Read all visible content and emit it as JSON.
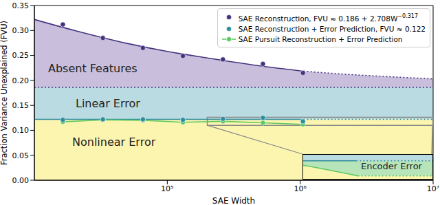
{
  "chart_data": [
    {
      "type": "scatter",
      "x_label": "SAE Width",
      "y_label": "Fraction Variance Unexplained (FVU)",
      "log": "x",
      "legend": "upper right",
      "xlim": [
        10000,
        10000000
      ],
      "ylim": [
        0,
        0.35
      ],
      "xticks": [
        {
          "value": 100000,
          "label": "10⁵"
        },
        {
          "value": 1000000,
          "label": "10⁶"
        },
        {
          "value": 10000000,
          "label": "10⁷"
        }
      ],
      "yticks": [
        {
          "value": 0,
          "label": "0.00"
        },
        {
          "value": 0.05,
          "label": "0.05"
        },
        {
          "value": 0.1,
          "label": "0.10"
        },
        {
          "value": 0.15,
          "label": "0.15"
        },
        {
          "value": 0.2,
          "label": "0.20"
        },
        {
          "value": 0.25,
          "label": "0.25"
        },
        {
          "value": 0.3,
          "label": "0.30"
        },
        {
          "value": 0.35,
          "label": "0.35"
        }
      ],
      "series": [
        {
          "name": "SAE Reconstruction, FVU ≈ 0.186 + 2.708W−0.317",
          "type": "scatter",
          "marker": "circle",
          "color": "#46337e",
          "x": [
            16384,
            32768,
            65536,
            131072,
            262144,
            524288,
            1048576
          ],
          "values": [
            0.312,
            0.285,
            0.265,
            0.249,
            0.242,
            0.233,
            0.215
          ]
        },
        {
          "name": "SAE Reconstruction + Error Prediction, FVU ≈ 0.122",
          "type": "scatter",
          "marker": "circle",
          "color": "#2e8c9e",
          "x": [
            16384,
            32768,
            65536,
            131072,
            262144,
            524288,
            1048576
          ],
          "values": [
            0.121,
            0.122,
            0.122,
            0.121,
            0.123,
            0.125,
            0.118
          ]
        },
        {
          "name": "SAE Pursuit Reconstruction + Error Prediction",
          "type": "line",
          "marker": "circle",
          "color": "#5ec962",
          "x": [
            16384,
            32768,
            65536,
            131072,
            262144,
            524288,
            1048576
          ],
          "values": [
            0.117,
            0.121,
            0.12,
            0.116,
            0.118,
            0.115,
            0.112
          ]
        },
        {
          "type": "line",
          "line_style": "solid",
          "color": "#46337e",
          "x": [
            10000,
            20000,
            50000,
            100000,
            200000,
            500000,
            1000000
          ],
          "values": [
            0.322,
            0.3,
            0.274,
            0.258,
            0.245,
            0.229,
            0.219
          ]
        },
        {
          "type": "line",
          "line_style": "dotted",
          "color": "#46337e",
          "x": [
            1000000,
            2000000,
            5000000,
            10000000
          ],
          "values": [
            0.219,
            0.213,
            0.207,
            0.203
          ]
        },
        {
          "type": "line",
          "line_style": "dotted",
          "color": "#46337e",
          "x": [
            10000,
            10000000
          ],
          "values": [
            0.186,
            0.186
          ]
        },
        {
          "type": "line",
          "line_style": "solid",
          "color": "#2e8c9e",
          "x": [
            10000,
            1000000
          ],
          "values": [
            0.122,
            0.122
          ]
        },
        {
          "type": "line",
          "line_style": "dotted",
          "color": "#2e8c9e",
          "x": [
            1000000,
            10000000
          ],
          "values": [
            0.122,
            0.122
          ]
        }
      ],
      "regions": [
        {
          "label": "Absent Features",
          "color": "#c9bfdd"
        },
        {
          "label": "Linear Error",
          "color": "#b9dbe1"
        },
        {
          "label": "Nonlinear Error",
          "color": "#fcf5b0"
        }
      ]
    },
    {
      "type": "line",
      "tick_labels": false,
      "log": "x",
      "xlim": [
        200000,
        10000000
      ],
      "ylim": [
        0.11,
        0.126
      ],
      "series": [
        {
          "type": "line",
          "line_style": "solid",
          "color": "#2e8c9e",
          "x": [
            200000,
            1000000
          ],
          "values": [
            0.122,
            0.122
          ]
        },
        {
          "type": "line",
          "line_style": "dotted",
          "color": "#2e8c9e",
          "x": [
            1000000,
            10000000
          ],
          "values": [
            0.122,
            0.122
          ]
        },
        {
          "type": "line",
          "line_style": "solid",
          "color": "#5ec962",
          "x": [
            200000,
            262144,
            524288,
            1048576
          ],
          "values": [
            0.119,
            0.118,
            0.115,
            0.112
          ]
        },
        {
          "type": "line",
          "line_style": "dotted",
          "color": "#5ec962",
          "x": [
            1048576,
            10000000
          ],
          "values": [
            0.112,
            0.112
          ]
        }
      ],
      "regions": [
        {
          "color": "#b9dbe1"
        },
        {
          "label": "Encoder Error",
          "color": "#b7e4b9"
        },
        {
          "color": "#fcf5b0"
        }
      ]
    }
  ]
}
